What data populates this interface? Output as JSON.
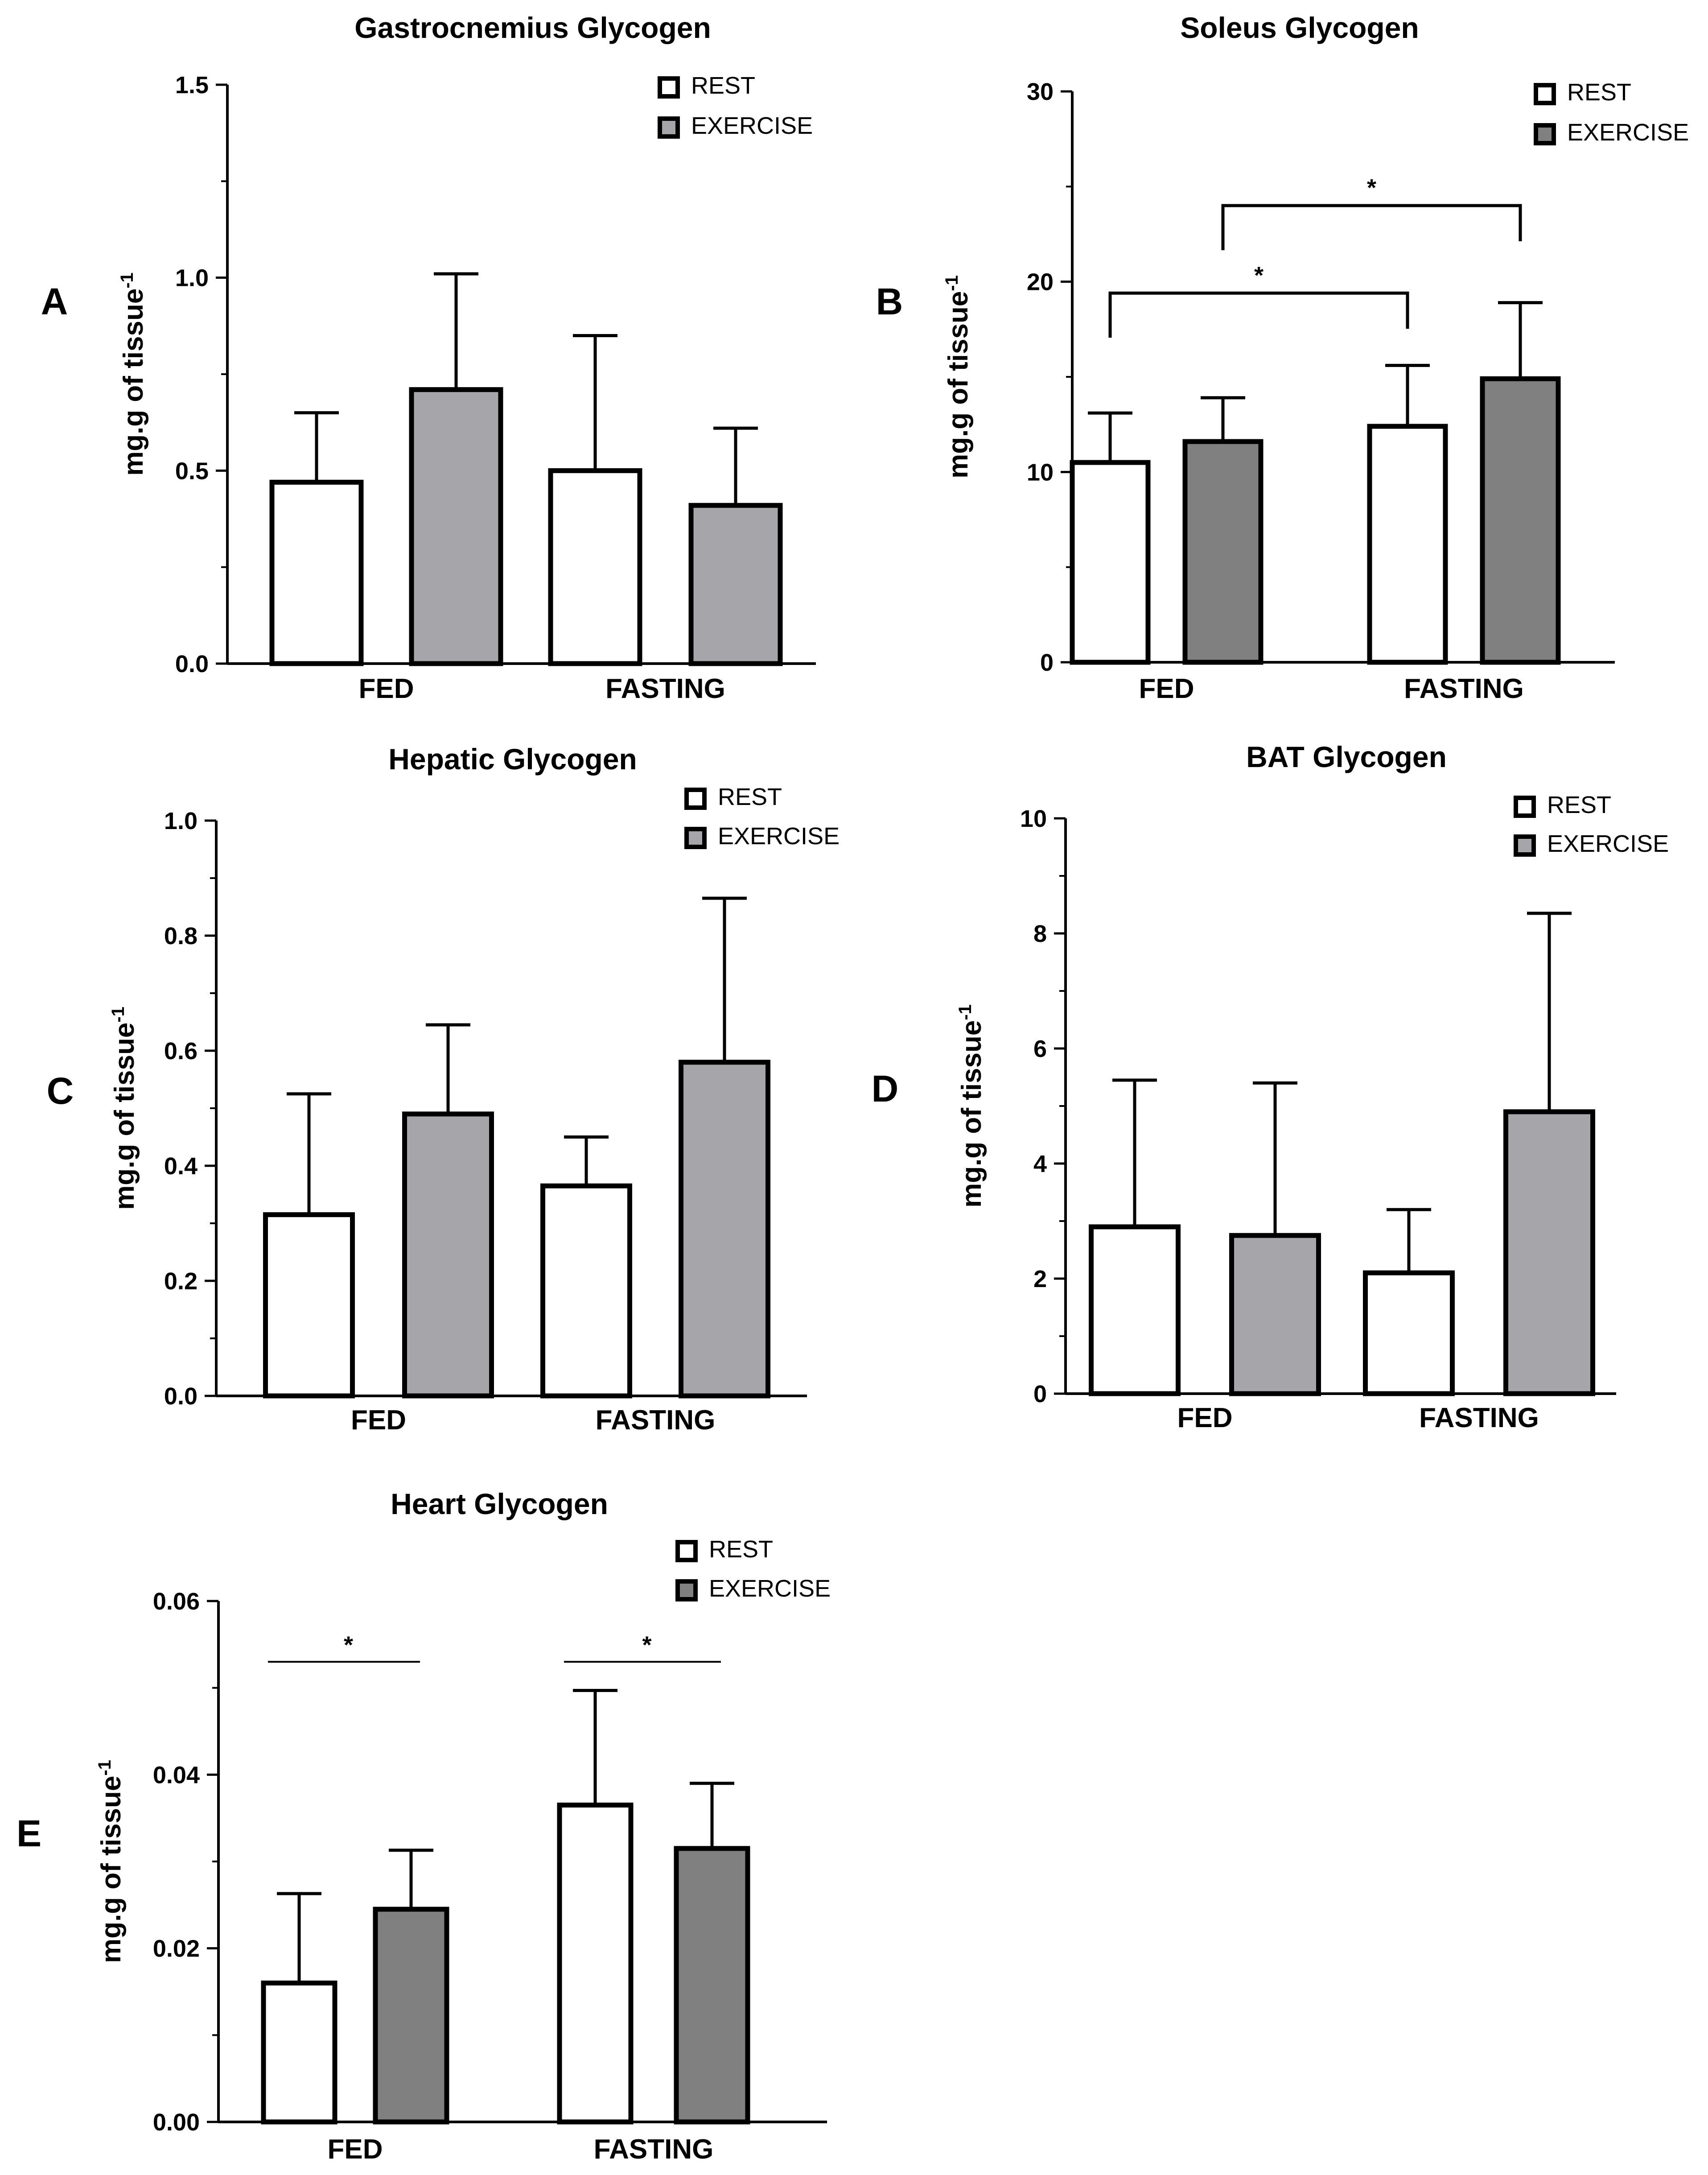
{
  "chart_data": [
    {
      "type": "bar",
      "panel": "A",
      "title": "Gastrocnemius Glycogen",
      "ylabel": "mg.g of tissue",
      "ylabel_sup": "-1",
      "ylim": [
        0,
        1.5
      ],
      "yticks": [
        "0.0",
        "0.5",
        "1.0",
        "1.5"
      ],
      "categories": [
        "FED",
        "FASTING"
      ],
      "series": [
        {
          "name": "REST",
          "color": "#ffffff",
          "values": [
            0.47,
            0.5
          ],
          "errors": [
            0.18,
            0.35
          ]
        },
        {
          "name": "EXERCISE",
          "color": "#a6a5aa",
          "values": [
            0.71,
            0.41
          ],
          "errors": [
            0.3,
            0.2
          ]
        }
      ],
      "significance": []
    },
    {
      "type": "bar",
      "panel": "B",
      "title": "Soleus Glycogen",
      "ylabel": "mg.g of tissue",
      "ylabel_sup": "-1",
      "ylim": [
        0,
        30
      ],
      "yticks": [
        "0",
        "10",
        "20",
        "30"
      ],
      "categories": [
        "FED",
        "FASTING"
      ],
      "series": [
        {
          "name": "REST",
          "color": "#ffffff",
          "values": [
            10.5,
            12.4
          ],
          "errors": [
            2.6,
            3.2
          ]
        },
        {
          "name": "EXERCISE",
          "color": "#808080",
          "values": [
            11.6,
            14.9
          ],
          "errors": [
            2.3,
            4.0
          ]
        }
      ],
      "significance": [
        {
          "from": [
            0,
            0
          ],
          "to": [
            1,
            0
          ],
          "y": 19.4,
          "label": "*"
        },
        {
          "from": [
            0,
            1
          ],
          "to": [
            1,
            1
          ],
          "y": 24.0,
          "label": "*"
        }
      ]
    },
    {
      "type": "bar",
      "panel": "C",
      "title": "Hepatic Glycogen",
      "ylabel": "mg.g of tissue",
      "ylabel_sup": "-1",
      "ylim": [
        0,
        1.0
      ],
      "yticks": [
        "0.0",
        "0.2",
        "0.4",
        "0.6",
        "0.8",
        "1.0"
      ],
      "categories": [
        "FED",
        "FASTING"
      ],
      "series": [
        {
          "name": "REST",
          "color": "#ffffff",
          "values": [
            0.315,
            0.365
          ],
          "errors": [
            0.21,
            0.085
          ]
        },
        {
          "name": "EXERCISE",
          "color": "#a6a5aa",
          "values": [
            0.49,
            0.58
          ],
          "errors": [
            0.155,
            0.285
          ]
        }
      ],
      "significance": []
    },
    {
      "type": "bar",
      "panel": "D",
      "title": "BAT Glycogen",
      "ylabel": "mg.g of tissue",
      "ylabel_sup": "-1",
      "ylim": [
        0,
        10
      ],
      "yticks": [
        "0",
        "2",
        "4",
        "6",
        "8",
        "10"
      ],
      "categories": [
        "FED",
        "FASTING"
      ],
      "series": [
        {
          "name": "REST",
          "color": "#ffffff",
          "values": [
            2.9,
            2.1
          ],
          "errors": [
            2.55,
            1.1
          ]
        },
        {
          "name": "EXERCISE",
          "color": "#a6a5aa",
          "values": [
            2.75,
            4.9
          ],
          "errors": [
            2.65,
            3.45
          ]
        }
      ],
      "significance": []
    },
    {
      "type": "bar",
      "panel": "E",
      "title": "Heart Glycogen",
      "ylabel": "mg.g of tissue",
      "ylabel_sup": "-1",
      "ylim": [
        0,
        0.06
      ],
      "yticks": [
        "0.00",
        "0.02",
        "0.04",
        "0.06"
      ],
      "categories": [
        "FED",
        "FASTING"
      ],
      "series": [
        {
          "name": "REST",
          "color": "#ffffff",
          "values": [
            0.016,
            0.0365
          ],
          "errors": [
            0.0103,
            0.0132
          ]
        },
        {
          "name": "EXERCISE",
          "color": "#808080",
          "values": [
            0.0245,
            0.0315
          ],
          "errors": [
            0.0068,
            0.0075
          ]
        }
      ],
      "significance": [
        {
          "from": [
            0,
            0
          ],
          "to": [
            0,
            1
          ],
          "y": 0.053,
          "label": "*",
          "style": "thin"
        },
        {
          "from": [
            1,
            0
          ],
          "to": [
            1,
            1
          ],
          "y": 0.053,
          "label": "*",
          "style": "thin"
        }
      ]
    }
  ]
}
